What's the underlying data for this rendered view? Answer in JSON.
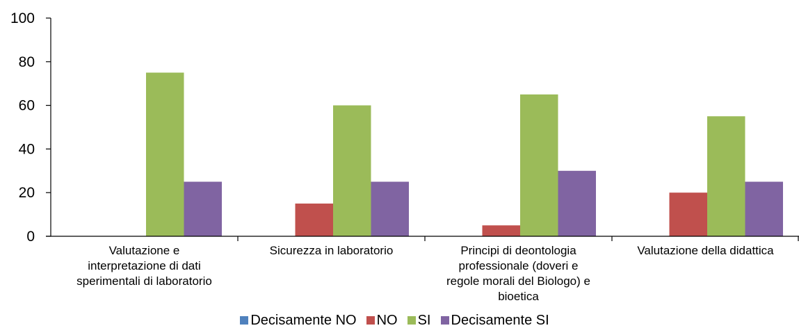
{
  "chart_data": {
    "type": "bar",
    "categories": [
      "Valutazione e interpretazione di dati sperimentali di laboratorio",
      "Sicurezza in laboratorio",
      "Principi di deontologia professionale (doveri e regole morali  del Biologo) e bioetica",
      "Valutazione della didattica"
    ],
    "category_lines": [
      [
        "Valutazione e",
        "interpretazione di dati",
        "sperimentali di laboratorio"
      ],
      [
        "Sicurezza in laboratorio"
      ],
      [
        "Principi di deontologia",
        "professionale (doveri e",
        "regole morali  del Biologo) e",
        "bioetica"
      ],
      [
        "Valutazione della didattica"
      ]
    ],
    "series": [
      {
        "name": "Decisamente NO",
        "color": "#4F81BD",
        "values": [
          0,
          0,
          0,
          0
        ]
      },
      {
        "name": "NO",
        "color": "#C0504D",
        "values": [
          0,
          15,
          5,
          20
        ]
      },
      {
        "name": "SI",
        "color": "#9BBB59",
        "values": [
          75,
          60,
          65,
          55
        ]
      },
      {
        "name": "Decisamente SI",
        "color": "#8064A2",
        "values": [
          25,
          25,
          30,
          25
        ]
      }
    ],
    "ylim": [
      0,
      100
    ],
    "yticks": [
      "0",
      "20",
      "40",
      "60",
      "80",
      "100"
    ],
    "xlabel": "",
    "ylabel": "",
    "grid": false,
    "legend_position": "bottom"
  }
}
